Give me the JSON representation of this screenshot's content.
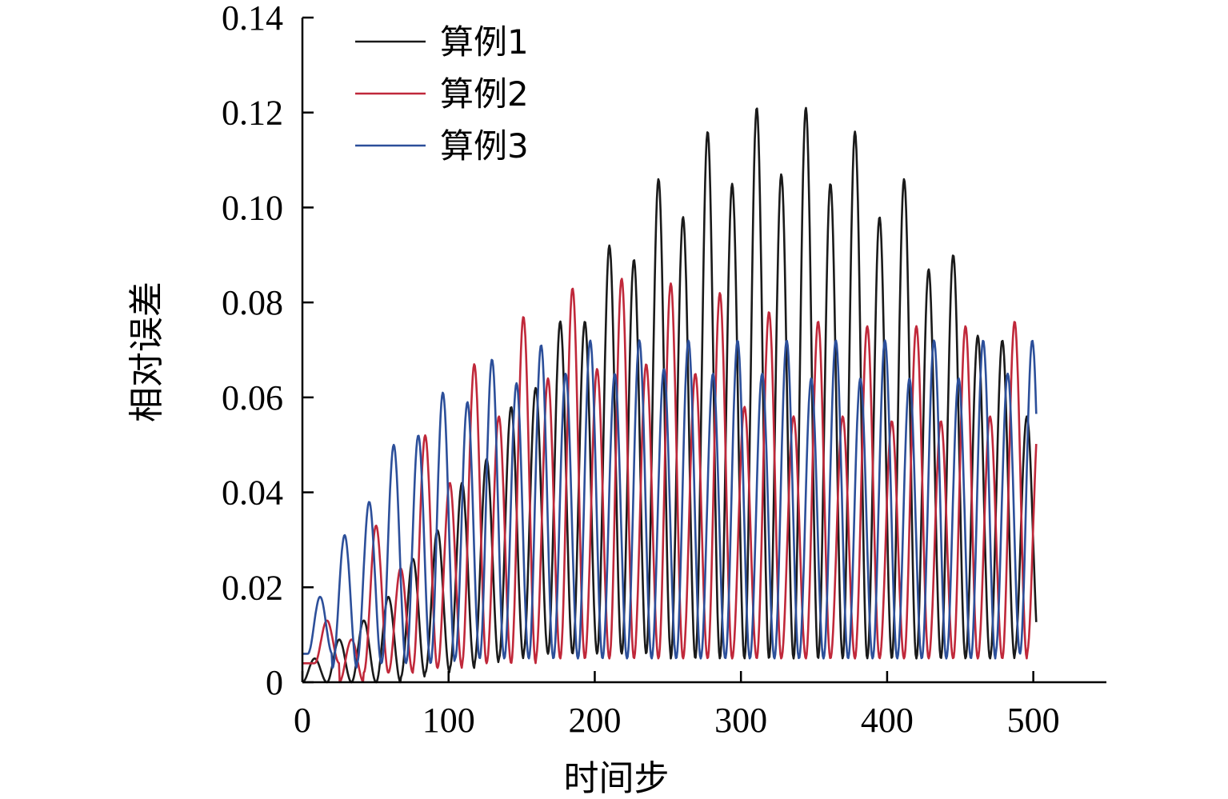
{
  "chart_data": {
    "type": "line",
    "title": "",
    "xlabel": "时间步",
    "ylabel": "相对误差",
    "xlim": [
      0,
      550
    ],
    "ylim": [
      0,
      0.14
    ],
    "xticks": [
      0,
      100,
      200,
      300,
      400,
      500
    ],
    "yticks": [
      0,
      0.02,
      0.04,
      0.06,
      0.08,
      0.1,
      0.12,
      0.14
    ],
    "xtick_labels": [
      "0",
      "100",
      "200",
      "300",
      "400",
      "500"
    ],
    "ytick_labels": [
      "0",
      "0.02",
      "0.04",
      "0.06",
      "0.08",
      "0.10",
      "0.12",
      "0.14"
    ],
    "grid": false,
    "legend_position": "top-left",
    "series": [
      {
        "name": "算例1",
        "color": "#1a1a1a",
        "period": 16.8,
        "phase": 0,
        "x_start": 0,
        "x_end": 502,
        "peaks": [
          0.005,
          0.009,
          0.013,
          0.018,
          0.026,
          0.032,
          0.042,
          0.047,
          0.058,
          0.062,
          0.076,
          0.076,
          0.092,
          0.089,
          0.106,
          0.098,
          0.116,
          0.105,
          0.121,
          0.107,
          0.121,
          0.105,
          0.116,
          0.098,
          0.106,
          0.087,
          0.09,
          0.073,
          0.072,
          0.056,
          0.041
        ],
        "troughs": [
          0.0,
          0.0,
          0.0,
          0.0,
          0.001,
          0.002,
          0.003,
          0.004,
          0.005,
          0.006,
          0.006,
          0.006,
          0.006,
          0.006,
          0.006,
          0.005,
          0.005,
          0.005,
          0.005,
          0.005,
          0.005,
          0.005,
          0.005,
          0.005,
          0.005,
          0.005,
          0.005,
          0.005,
          0.005,
          0.006,
          0.006
        ]
      },
      {
        "name": "算例2",
        "color": "#c0283a",
        "period": 16.8,
        "phase": 0.5,
        "x_start": 0,
        "x_end": 502,
        "peaks": [
          0.013,
          0.009,
          0.033,
          0.024,
          0.052,
          0.042,
          0.067,
          0.056,
          0.077,
          0.064,
          0.083,
          0.066,
          0.085,
          0.067,
          0.084,
          0.065,
          0.082,
          0.058,
          0.078,
          0.056,
          0.076,
          0.056,
          0.075,
          0.055,
          0.075,
          0.055,
          0.075,
          0.056,
          0.076,
          0.057,
          0.077
        ],
        "troughs": [
          0.004,
          0.0,
          0.002,
          0.002,
          0.003,
          0.003,
          0.004,
          0.004,
          0.004,
          0.005,
          0.005,
          0.005,
          0.005,
          0.005,
          0.005,
          0.005,
          0.005,
          0.005,
          0.005,
          0.005,
          0.005,
          0.005,
          0.005,
          0.005,
          0.005,
          0.005,
          0.005,
          0.005,
          0.005,
          0.006,
          0.006
        ]
      },
      {
        "name": "算例3",
        "color": "#2c4f9a",
        "period": 16.8,
        "phase": 0.22,
        "x_start": 0,
        "x_end": 502,
        "peaks": [
          0.018,
          0.031,
          0.038,
          0.05,
          0.052,
          0.061,
          0.059,
          0.068,
          0.063,
          0.071,
          0.065,
          0.072,
          0.065,
          0.072,
          0.066,
          0.072,
          0.065,
          0.072,
          0.065,
          0.072,
          0.064,
          0.072,
          0.064,
          0.072,
          0.064,
          0.072,
          0.064,
          0.072,
          0.065,
          0.072,
          0.064
        ],
        "troughs": [
          0.006,
          0.003,
          0.004,
          0.004,
          0.004,
          0.004,
          0.005,
          0.005,
          0.005,
          0.005,
          0.005,
          0.005,
          0.005,
          0.005,
          0.005,
          0.005,
          0.005,
          0.005,
          0.005,
          0.005,
          0.005,
          0.005,
          0.005,
          0.005,
          0.005,
          0.005,
          0.005,
          0.005,
          0.006,
          0.006,
          0.006
        ]
      }
    ]
  }
}
